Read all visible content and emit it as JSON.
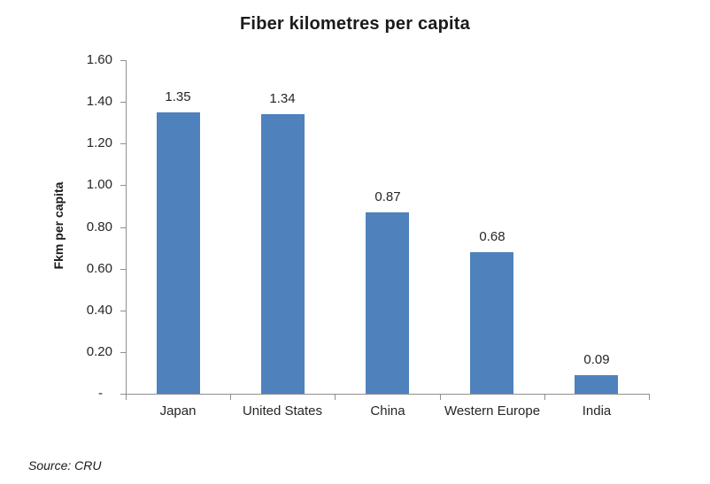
{
  "chart_data": {
    "type": "bar",
    "title": "Fiber kilometres per capita",
    "ylabel": "Fkm per capita",
    "xlabel": "",
    "categories": [
      "Japan",
      "United States",
      "China",
      "Western Europe",
      "India"
    ],
    "values": [
      1.35,
      1.34,
      0.87,
      0.68,
      0.09
    ],
    "value_labels": [
      "1.35",
      "1.34",
      "0.87",
      "0.68",
      "0.09"
    ],
    "ylim": [
      0,
      1.6
    ],
    "y_tick_step": 0.2,
    "y_tick_labels_bottom_to_top": [
      "-",
      "0.20",
      "0.40",
      "0.60",
      "0.80",
      "1.00",
      "1.20",
      "1.40",
      "1.60"
    ],
    "grid": false,
    "legend": "none",
    "bar_color": "#4f81bd",
    "axis_color": "#909090",
    "text_color": "#262626"
  },
  "source": "Source: CRU"
}
